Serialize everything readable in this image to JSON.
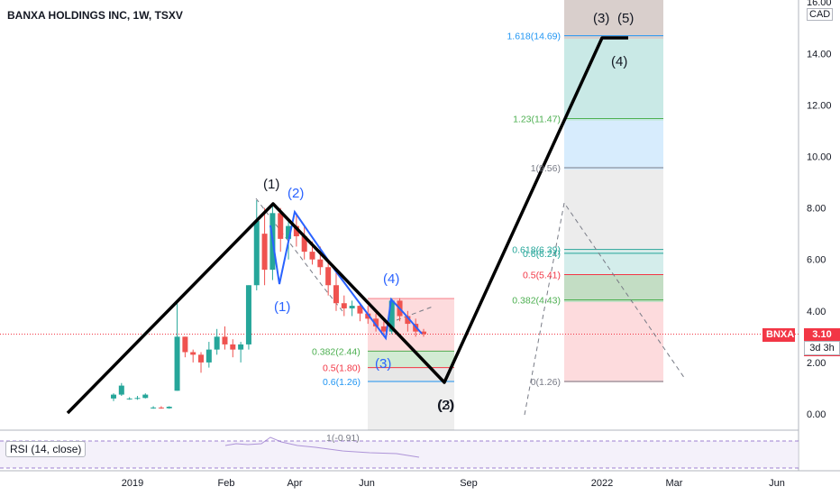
{
  "header": {
    "title": "BANXA HOLDINGS INC, 1W, TSXV",
    "currency": "CAD"
  },
  "rsi": {
    "label": "RSI (14, close)"
  },
  "price_tag": {
    "symbol": "BNXA",
    "price": "3.10",
    "countdown": "3d 3h"
  },
  "chart_data": {
    "type": "candlestick",
    "title": "BANXA HOLDINGS INC, 1W, TSXV",
    "xlabel": "",
    "ylabel": "",
    "ylim": [
      -0.3,
      16.3
    ],
    "y_ticks": [
      "0.00",
      "2.00",
      "4.00",
      "6.00",
      "8.00",
      "10.00",
      "12.00",
      "14.00",
      "16.00"
    ],
    "x_ticks": [
      "2019",
      "Feb",
      "Apr",
      "Jun",
      "Sep",
      "2022",
      "Mar",
      "Jun"
    ],
    "last_price": 3.1,
    "candles": [
      {
        "o": 0.6,
        "h": 0.8,
        "l": 0.5,
        "c": 0.75
      },
      {
        "o": 0.75,
        "h": 1.2,
        "l": 0.7,
        "c": 1.1
      },
      {
        "o": 0.6,
        "h": 0.65,
        "l": 0.55,
        "c": 0.6
      },
      {
        "o": 0.6,
        "h": 0.7,
        "l": 0.55,
        "c": 0.62
      },
      {
        "o": 0.62,
        "h": 0.8,
        "l": 0.6,
        "c": 0.75
      },
      {
        "o": 0.25,
        "h": 0.3,
        "l": 0.2,
        "c": 0.25
      },
      {
        "o": 0.25,
        "h": 0.3,
        "l": 0.2,
        "c": 0.22
      },
      {
        "o": 0.22,
        "h": 0.3,
        "l": 0.2,
        "c": 0.28
      },
      {
        "o": 0.9,
        "h": 4.3,
        "l": 0.9,
        "c": 3.0
      },
      {
        "o": 3.0,
        "h": 3.0,
        "l": 2.2,
        "c": 2.4
      },
      {
        "o": 2.4,
        "h": 2.5,
        "l": 2.0,
        "c": 2.3
      },
      {
        "o": 2.3,
        "h": 2.4,
        "l": 1.6,
        "c": 2.0
      },
      {
        "o": 2.0,
        "h": 2.8,
        "l": 1.8,
        "c": 2.5
      },
      {
        "o": 2.5,
        "h": 3.3,
        "l": 2.3,
        "c": 3.0
      },
      {
        "o": 3.0,
        "h": 3.4,
        "l": 2.5,
        "c": 2.7
      },
      {
        "o": 2.7,
        "h": 2.9,
        "l": 2.2,
        "c": 2.5
      },
      {
        "o": 2.5,
        "h": 2.8,
        "l": 2.0,
        "c": 2.7
      },
      {
        "o": 2.7,
        "h": 5.0,
        "l": 2.5,
        "c": 5.0
      },
      {
        "o": 5.0,
        "h": 8.3,
        "l": 4.8,
        "c": 7.5
      },
      {
        "o": 7.0,
        "h": 8.0,
        "l": 5.0,
        "c": 5.6
      },
      {
        "o": 5.6,
        "h": 8.2,
        "l": 5.2,
        "c": 7.8
      },
      {
        "o": 7.8,
        "h": 8.0,
        "l": 6.3,
        "c": 6.8
      },
      {
        "o": 6.8,
        "h": 7.5,
        "l": 6.0,
        "c": 7.3
      },
      {
        "o": 7.3,
        "h": 7.8,
        "l": 6.5,
        "c": 6.9
      },
      {
        "o": 6.9,
        "h": 7.3,
        "l": 6.0,
        "c": 6.3
      },
      {
        "o": 6.3,
        "h": 6.7,
        "l": 5.8,
        "c": 6.0
      },
      {
        "o": 6.0,
        "h": 6.5,
        "l": 5.4,
        "c": 5.7
      },
      {
        "o": 5.7,
        "h": 6.0,
        "l": 4.6,
        "c": 5.0
      },
      {
        "o": 5.0,
        "h": 5.5,
        "l": 4.0,
        "c": 4.3
      },
      {
        "o": 4.3,
        "h": 4.6,
        "l": 3.8,
        "c": 4.1
      },
      {
        "o": 4.1,
        "h": 4.4,
        "l": 3.8,
        "c": 4.2
      },
      {
        "o": 4.2,
        "h": 4.3,
        "l": 3.6,
        "c": 3.9
      },
      {
        "o": 3.9,
        "h": 4.2,
        "l": 3.5,
        "c": 3.7
      },
      {
        "o": 3.7,
        "h": 3.9,
        "l": 3.2,
        "c": 3.4
      },
      {
        "o": 3.4,
        "h": 3.6,
        "l": 3.0,
        "c": 3.2
      },
      {
        "o": 3.2,
        "h": 4.5,
        "l": 3.1,
        "c": 4.4
      },
      {
        "o": 4.4,
        "h": 4.5,
        "l": 3.6,
        "c": 3.8
      },
      {
        "o": 3.8,
        "h": 4.0,
        "l": 3.2,
        "c": 3.5
      },
      {
        "o": 3.5,
        "h": 3.7,
        "l": 3.0,
        "c": 3.2
      },
      {
        "o": 3.2,
        "h": 3.3,
        "l": 3.0,
        "c": 3.1
      }
    ],
    "wave_labels_black": [
      "(1)",
      "(2)",
      "(3)",
      "(4)",
      "(5)",
      "(3)",
      "(5)",
      "(4)"
    ],
    "wave_labels_blue": [
      "(2)",
      "(1)",
      "(4)",
      "(3)"
    ],
    "fib_retracement_levels": [
      {
        "label": "0.382(2.44)",
        "value": 2.44
      },
      {
        "label": "0.5(1.80)",
        "value": 1.8
      },
      {
        "label": "0.6(1.26)",
        "value": 1.26
      },
      {
        "label": "1(-0.91)",
        "value": -0.91
      }
    ],
    "fib_extension_levels": [
      {
        "label": "1.618(14.69)",
        "value": 14.69
      },
      {
        "label": "1.23(11.47)",
        "value": 11.47
      },
      {
        "label": "1(9.56)",
        "value": 9.56
      },
      {
        "label": "0.618(6.39)",
        "value": 6.39
      },
      {
        "label": "0.6(6.24)",
        "value": 6.24
      },
      {
        "label": "0.5(5.41)",
        "value": 5.41
      },
      {
        "label": "0.382(4.43)",
        "value": 4.43
      },
      {
        "label": "0(1.26)",
        "value": 1.26
      }
    ],
    "colors": {
      "up": "#26a69a",
      "down": "#ef5350",
      "wave_blue": "#2962ff",
      "price": "#f23645"
    }
  }
}
